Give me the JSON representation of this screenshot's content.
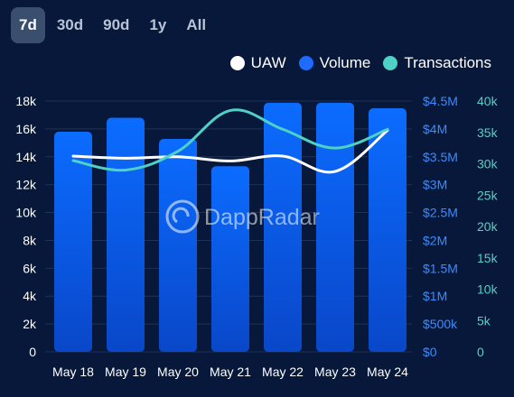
{
  "tabs": [
    {
      "label": "7d",
      "active": true
    },
    {
      "label": "30d",
      "active": false
    },
    {
      "label": "90d",
      "active": false
    },
    {
      "label": "1y",
      "active": false
    },
    {
      "label": "All",
      "active": false
    }
  ],
  "watermark": "DappRadar",
  "colors": {
    "background": "#07183a",
    "uaw": "#ffffff",
    "volume": "#1f6bff",
    "transactions": "#4fd1c5",
    "volume_axis": "#3d8bff",
    "transactions_axis": "#57cfc2",
    "left_axis": "#ffffff"
  },
  "chart_data": {
    "type": "bar",
    "categories": [
      "May 18",
      "May 19",
      "May 20",
      "May 21",
      "May 22",
      "May 23",
      "May 24"
    ],
    "series": [
      {
        "name": "Volume",
        "kind": "bar",
        "axis": "volume",
        "values": [
          3950000,
          4200000,
          3820000,
          3330000,
          4470000,
          4470000,
          4370000
        ]
      },
      {
        "name": "UAW",
        "kind": "line",
        "axis": "uaw",
        "values": [
          14050,
          13900,
          14000,
          13700,
          14050,
          12950,
          15900
        ]
      },
      {
        "name": "Transactions",
        "kind": "line",
        "axis": "transactions",
        "values": [
          30500,
          29000,
          32000,
          38500,
          35500,
          32500,
          35500
        ]
      }
    ],
    "axes": {
      "uaw": {
        "min": 0,
        "max": 18000,
        "ticks": [
          "0",
          "2k",
          "4k",
          "6k",
          "8k",
          "10k",
          "12k",
          "14k",
          "16k",
          "18k"
        ]
      },
      "volume": {
        "min": 0,
        "max": 4500000,
        "ticks": [
          "$0",
          "$500k",
          "$1M",
          "$1.5M",
          "$2M",
          "$2.5M",
          "$3M",
          "$3.5M",
          "$4M",
          "$4.5M"
        ]
      },
      "transactions": {
        "min": 0,
        "max": 40000,
        "ticks": [
          "0",
          "5k",
          "10k",
          "15k",
          "20k",
          "25k",
          "30k",
          "35k",
          "40k"
        ]
      }
    },
    "legend": [
      "UAW",
      "Volume",
      "Transactions"
    ],
    "legend_position": "top-right",
    "grid": true
  }
}
